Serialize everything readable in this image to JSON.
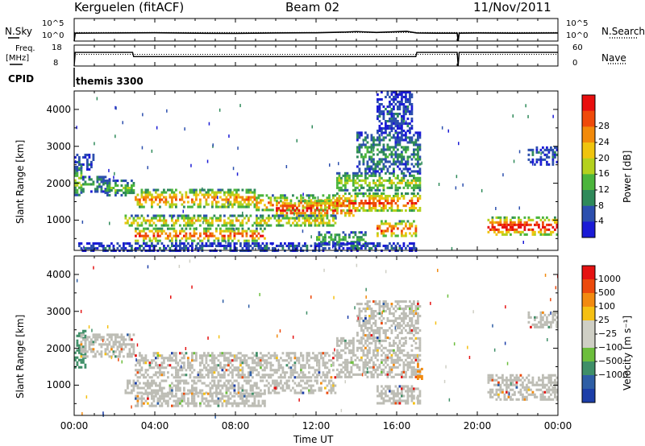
{
  "header": {
    "station": "Kerguelen (fitACF)",
    "beam": "Beam 02",
    "date": "11/Nov/2011"
  },
  "colors": {
    "power": [
      "#1b1bd6",
      "#2c4fae",
      "#2f8a5a",
      "#4bb53c",
      "#b4d11e",
      "#f0c40e",
      "#f28a0a",
      "#ef4a0a",
      "#e80e0e"
    ],
    "velocity": [
      "#1c3ea8",
      "#2e5ea5",
      "#3f8f68",
      "#6cbe3c",
      "#cfcfc5",
      "#cfcfc5",
      "#f5c013",
      "#f28a10",
      "#ec4a0c",
      "#e51212"
    ],
    "ground_scatter": "#bdbdb5"
  },
  "chart_data": [
    {
      "type": "line",
      "panel": "noise",
      "left_label": "N.Sky",
      "right_label": "N.Search",
      "left_ticks": [
        "10^5",
        "10^0"
      ],
      "right_ticks": [
        "10^5",
        "10^0"
      ],
      "xlim": [
        0,
        24
      ],
      "series": [
        {
          "name": "N.Sky",
          "x": [
            0.0,
            0.05,
            2,
            4,
            6,
            8,
            10,
            12,
            13.5,
            14,
            15,
            16.5,
            17,
            18,
            19,
            19.05,
            19.1,
            20,
            22,
            24
          ],
          "y": [
            0.0,
            0.35,
            0.36,
            0.37,
            0.35,
            0.34,
            0.36,
            0.37,
            0.4,
            0.42,
            0.38,
            0.43,
            0.36,
            0.35,
            0.35,
            0.0,
            0.35,
            0.36,
            0.35,
            0.36
          ]
        },
        {
          "name": "N.Search",
          "x": [
            0,
            24
          ],
          "y": [
            0.38,
            0.38
          ]
        }
      ]
    },
    {
      "type": "line",
      "panel": "frequency",
      "left_label_top": "Freq.",
      "left_label_bottom": "[MHz]",
      "right_label": "Nave",
      "left_ticks": [
        "18",
        "8"
      ],
      "right_ticks": [
        "60",
        "0"
      ],
      "ylim": [
        8,
        18
      ],
      "xlim": [
        0,
        24
      ],
      "series": [
        {
          "name": "Freq.",
          "x": [
            0.0,
            0.05,
            2.9,
            2.95,
            16.95,
            17.0,
            19.0,
            19.05,
            19.1,
            24.0
          ],
          "y": [
            8,
            14.5,
            14.5,
            12.5,
            12.5,
            14.5,
            14.5,
            8,
            14.5,
            14.5
          ]
        },
        {
          "name": "Nave",
          "x": [
            0,
            24
          ],
          "y": [
            13.6,
            13.6
          ]
        }
      ]
    },
    {
      "type": "table",
      "panel": "cpid",
      "label": "CPID",
      "value": "themis 3300"
    },
    {
      "type": "heatmap",
      "panel": "power",
      "ylabel": "Slant Range [km]",
      "xlabel": "",
      "xlim": [
        0,
        24
      ],
      "ylim": [
        180,
        4500
      ],
      "y_ticks": [
        1000,
        2000,
        3000,
        4000
      ],
      "x_ticks": [
        "00:00",
        "04:00",
        "08:00",
        "12:00",
        "16:00",
        "20:00",
        "00:00"
      ],
      "colorbar_label": "Power [dB]",
      "colorbar_ticks": [
        "4",
        "8",
        "12",
        "16",
        "20",
        "24",
        "28"
      ],
      "bands": [
        {
          "t": [
            0.0,
            1.0
          ],
          "r": [
            2400,
            2800
          ],
          "level": 1
        },
        {
          "t": [
            0.0,
            0.4
          ],
          "r": [
            1700,
            2500
          ],
          "level": 4
        },
        {
          "t": [
            0.4,
            1.8
          ],
          "r": [
            1800,
            2200
          ],
          "level": 2
        },
        {
          "t": [
            1.5,
            3.0
          ],
          "r": [
            1700,
            2100
          ],
          "level": 3
        },
        {
          "t": [
            3.0,
            9.0
          ],
          "r": [
            1350,
            1850
          ],
          "level": 6
        },
        {
          "t": [
            9.0,
            13.0
          ],
          "r": [
            1250,
            1700
          ],
          "level": 6
        },
        {
          "t": [
            10.0,
            14.0
          ],
          "r": [
            1100,
            1550
          ],
          "level": 8
        },
        {
          "t": [
            13.0,
            17.2
          ],
          "r": [
            1250,
            1750
          ],
          "level": 7
        },
        {
          "t": [
            13.0,
            17.2
          ],
          "r": [
            1800,
            2300
          ],
          "level": 4
        },
        {
          "t": [
            14.0,
            17.2
          ],
          "r": [
            2300,
            3400
          ],
          "level": 2
        },
        {
          "t": [
            15.0,
            16.8
          ],
          "r": [
            3400,
            4500
          ],
          "level": 1
        },
        {
          "t": [
            2.5,
            13.0
          ],
          "r": [
            850,
            1150
          ],
          "level": 5
        },
        {
          "t": [
            3.0,
            9.5
          ],
          "r": [
            450,
            800
          ],
          "level": 7
        },
        {
          "t": [
            12.0,
            14.5
          ],
          "r": [
            350,
            700
          ],
          "level": 3
        },
        {
          "t": [
            15.0,
            17.0
          ],
          "r": [
            550,
            1000
          ],
          "level": 7
        },
        {
          "t": [
            20.5,
            24.0
          ],
          "r": [
            600,
            1100
          ],
          "level": 8
        },
        {
          "t": [
            22.5,
            24.0
          ],
          "r": [
            2500,
            3000
          ],
          "level": 1
        },
        {
          "t": [
            0.2,
            17.0
          ],
          "r": [
            180,
            400
          ],
          "level": 1
        }
      ]
    },
    {
      "type": "heatmap",
      "panel": "velocity",
      "ylabel": "Slant Range [km]",
      "xlabel": "Time UT",
      "xlim": [
        0,
        24
      ],
      "ylim": [
        180,
        4500
      ],
      "y_ticks": [
        1000,
        2000,
        3000,
        4000
      ],
      "x_ticks": [
        "00:00",
        "04:00",
        "08:00",
        "12:00",
        "16:00",
        "20:00",
        "00:00"
      ],
      "colorbar_label": "Velocity [m s⁻¹]",
      "colorbar_ticks": [
        "1000",
        "500",
        "100",
        "25",
        "−25",
        "−100",
        "−500",
        "−1000"
      ],
      "bands": [
        {
          "t": [
            0.0,
            0.6
          ],
          "r": [
            1500,
            2500
          ],
          "level": 2
        },
        {
          "t": [
            0.3,
            3.0
          ],
          "r": [
            1800,
            2400
          ],
          "level": 4
        },
        {
          "t": [
            3.0,
            13.0
          ],
          "r": [
            1200,
            1900
          ],
          "level": 4
        },
        {
          "t": [
            2.5,
            13.0
          ],
          "r": [
            800,
            1150
          ],
          "level": 4
        },
        {
          "t": [
            3.0,
            9.5
          ],
          "r": [
            450,
            800
          ],
          "level": 4
        },
        {
          "t": [
            13.0,
            17.2
          ],
          "r": [
            1200,
            2300
          ],
          "level": 4
        },
        {
          "t": [
            14.0,
            17.2
          ],
          "r": [
            2300,
            3300
          ],
          "level": 4
        },
        {
          "t": [
            15.0,
            17.2
          ],
          "r": [
            500,
            1000
          ],
          "level": 4
        },
        {
          "t": [
            17.0,
            17.3
          ],
          "r": [
            1200,
            1600
          ],
          "level": 7
        },
        {
          "t": [
            20.5,
            24.0
          ],
          "r": [
            600,
            1300
          ],
          "level": 4
        },
        {
          "t": [
            22.5,
            24.0
          ],
          "r": [
            2600,
            3000
          ],
          "level": 4
        }
      ]
    }
  ]
}
